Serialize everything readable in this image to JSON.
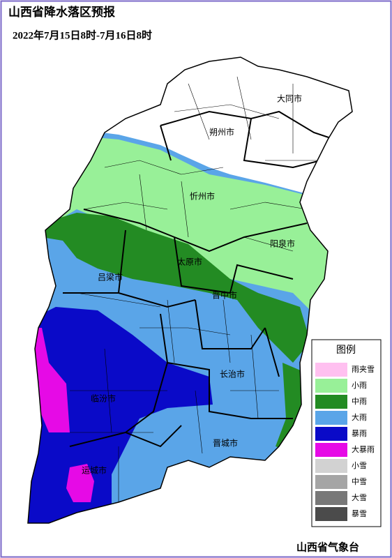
{
  "header": {
    "title": "山西省降水落区预报",
    "subtitle": "2022年7月15日8时-7月16日8时"
  },
  "cities": [
    {
      "name": "大同市"
    },
    {
      "name": "朔州市"
    },
    {
      "name": "忻州市"
    },
    {
      "name": "阳泉市"
    },
    {
      "name": "太原市"
    },
    {
      "name": "吕梁市"
    },
    {
      "name": "晋中市"
    },
    {
      "name": "长治市"
    },
    {
      "name": "临汾市"
    },
    {
      "name": "晋城市"
    },
    {
      "name": "运城市"
    }
  ],
  "legend": {
    "title": "图例",
    "items": [
      {
        "label": "雨夹雪",
        "color": "#ffc0f0"
      },
      {
        "label": "小雨",
        "color": "#98f098"
      },
      {
        "label": "中雨",
        "color": "#238b23"
      },
      {
        "label": "大雨",
        "color": "#5aa5e8"
      },
      {
        "label": "暴雨",
        "color": "#0a0ac8"
      },
      {
        "label": "大暴雨",
        "color": "#e60ae6"
      },
      {
        "label": "小雪",
        "color": "#d2d2d2"
      },
      {
        "label": "中雪",
        "color": "#a5a5a5"
      },
      {
        "label": "大雪",
        "color": "#787878"
      },
      {
        "label": "暴雪",
        "color": "#4b4b4b"
      }
    ]
  },
  "footer": "山西省气象台"
}
